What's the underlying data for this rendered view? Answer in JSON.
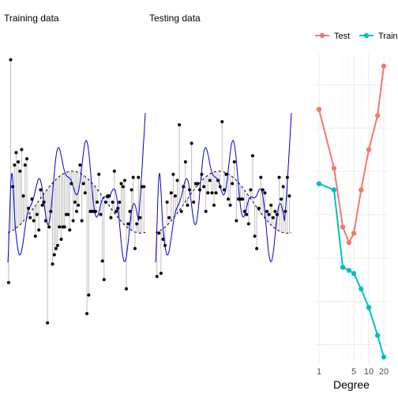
{
  "panels": {
    "training_title": "Training data",
    "testing_title": "Testing data"
  },
  "chart_data": [
    {
      "type": "scatter",
      "title": "Training data",
      "point_color": "#000000",
      "stem_color": "#bebebe",
      "truth_curve": "dashed black",
      "fit_color": "#0000cd",
      "points": [
        [
          0.005,
          0.24
        ],
        [
          0.02,
          0.96
        ],
        [
          0.035,
          0.55
        ],
        [
          0.048,
          0.62
        ],
        [
          0.06,
          0.66
        ],
        [
          0.075,
          0.63
        ],
        [
          0.088,
          0.6
        ],
        [
          0.1,
          0.67
        ],
        [
          0.112,
          0.52
        ],
        [
          0.125,
          0.62
        ],
        [
          0.138,
          0.64
        ],
        [
          0.15,
          0.48
        ],
        [
          0.162,
          0.45
        ],
        [
          0.175,
          0.51
        ],
        [
          0.188,
          0.44
        ],
        [
          0.2,
          0.39
        ],
        [
          0.212,
          0.46
        ],
        [
          0.225,
          0.41
        ],
        [
          0.238,
          0.54
        ],
        [
          0.25,
          0.49
        ],
        [
          0.262,
          0.5
        ],
        [
          0.275,
          0.44
        ],
        [
          0.288,
          0.11
        ],
        [
          0.3,
          0.42
        ],
        [
          0.312,
          0.47
        ],
        [
          0.325,
          0.3
        ],
        [
          0.338,
          0.33
        ],
        [
          0.35,
          0.35
        ],
        [
          0.362,
          0.36
        ],
        [
          0.375,
          0.42
        ],
        [
          0.388,
          0.38
        ],
        [
          0.4,
          0.42
        ],
        [
          0.412,
          0.42
        ],
        [
          0.425,
          0.46
        ],
        [
          0.438,
          0.46
        ],
        [
          0.45,
          0.41
        ],
        [
          0.462,
          0.56
        ],
        [
          0.475,
          0.44
        ],
        [
          0.488,
          0.5
        ],
        [
          0.5,
          0.47
        ],
        [
          0.512,
          0.49
        ],
        [
          0.525,
          0.62
        ],
        [
          0.538,
          0.44
        ],
        [
          0.55,
          0.56
        ],
        [
          0.562,
          0.53
        ],
        [
          0.575,
          0.14
        ],
        [
          0.588,
          0.2
        ],
        [
          0.6,
          0.47
        ],
        [
          0.612,
          0.47
        ],
        [
          0.625,
          0.47
        ],
        [
          0.638,
          0.47
        ],
        [
          0.65,
          0.5
        ],
        [
          0.662,
          0.59
        ],
        [
          0.675,
          0.46
        ],
        [
          0.688,
          0.31
        ],
        [
          0.7,
          0.25
        ],
        [
          0.712,
          0.5
        ],
        [
          0.725,
          0.52
        ],
        [
          0.738,
          0.52
        ],
        [
          0.75,
          0.45
        ],
        [
          0.762,
          0.5
        ],
        [
          0.775,
          0.6
        ],
        [
          0.788,
          0.47
        ],
        [
          0.8,
          0.48
        ],
        [
          0.812,
          0.5
        ],
        [
          0.825,
          0.56
        ],
        [
          0.838,
          0.55
        ],
        [
          0.85,
          0.57
        ],
        [
          0.862,
          0.22
        ],
        [
          0.875,
          0.43
        ],
        [
          0.888,
          0.47
        ],
        [
          0.9,
          0.54
        ],
        [
          0.912,
          0.58
        ],
        [
          0.925,
          0.35
        ],
        [
          0.938,
          0.43
        ],
        [
          0.95,
          0.58
        ],
        [
          0.962,
          0.45
        ],
        [
          0.975,
          0.55
        ],
        [
          0.99,
          0.55
        ]
      ]
    },
    {
      "type": "scatter",
      "title": "Testing data",
      "point_color": "#000000",
      "stem_color": "#bebebe",
      "truth_curve": "dashed black",
      "fit_color": "#0000cd",
      "points": [
        [
          0.01,
          0.26
        ],
        [
          0.025,
          0.4
        ],
        [
          0.04,
          0.27
        ],
        [
          0.055,
          0.38
        ],
        [
          0.07,
          0.36
        ],
        [
          0.085,
          0.5
        ],
        [
          0.1,
          0.45
        ],
        [
          0.115,
          0.53
        ],
        [
          0.13,
          0.59
        ],
        [
          0.145,
          0.52
        ],
        [
          0.16,
          0.57
        ],
        [
          0.175,
          0.75
        ],
        [
          0.19,
          0.47
        ],
        [
          0.205,
          0.55
        ],
        [
          0.22,
          0.63
        ],
        [
          0.235,
          0.49
        ],
        [
          0.25,
          0.54
        ],
        [
          0.265,
          0.69
        ],
        [
          0.28,
          0.5
        ],
        [
          0.295,
          0.56
        ],
        [
          0.31,
          0.56
        ],
        [
          0.325,
          0.54
        ],
        [
          0.34,
          0.59
        ],
        [
          0.355,
          0.55
        ],
        [
          0.37,
          0.47
        ],
        [
          0.385,
          0.53
        ],
        [
          0.4,
          0.57
        ],
        [
          0.415,
          0.53
        ],
        [
          0.43,
          0.49
        ],
        [
          0.445,
          0.53
        ],
        [
          0.46,
          0.57
        ],
        [
          0.475,
          0.55
        ],
        [
          0.49,
          0.76
        ],
        [
          0.505,
          0.54
        ],
        [
          0.52,
          0.59
        ],
        [
          0.535,
          0.51
        ],
        [
          0.55,
          0.49
        ],
        [
          0.565,
          0.56
        ],
        [
          0.58,
          0.63
        ],
        [
          0.595,
          0.44
        ],
        [
          0.61,
          0.51
        ],
        [
          0.625,
          0.51
        ],
        [
          0.64,
          0.51
        ],
        [
          0.655,
          0.47
        ],
        [
          0.67,
          0.46
        ],
        [
          0.685,
          0.43
        ],
        [
          0.7,
          0.54
        ],
        [
          0.715,
          0.65
        ],
        [
          0.73,
          0.39
        ],
        [
          0.745,
          0.35
        ],
        [
          0.76,
          0.48
        ],
        [
          0.775,
          0.58
        ],
        [
          0.79,
          0.54
        ],
        [
          0.805,
          0.53
        ],
        [
          0.82,
          0.47
        ],
        [
          0.835,
          0.46
        ],
        [
          0.85,
          0.49
        ],
        [
          0.865,
          0.45
        ],
        [
          0.88,
          0.47
        ],
        [
          0.895,
          0.46
        ],
        [
          0.91,
          0.58
        ],
        [
          0.925,
          0.51
        ],
        [
          0.94,
          0.55
        ],
        [
          0.955,
          0.47
        ],
        [
          0.97,
          0.58
        ],
        [
          0.985,
          0.52
        ]
      ]
    },
    {
      "type": "line",
      "xlabel": "Degree",
      "ylabel": "",
      "x_scale": "log",
      "x_ticks": [
        "1",
        "5",
        "10",
        "20"
      ],
      "legend_position": "top",
      "series": [
        {
          "name": "Test",
          "color": "#f8766d",
          "x": [
            1,
            2,
            3,
            4,
            5,
            7,
            10,
            15,
            20
          ],
          "y": [
            0.82,
            0.63,
            0.44,
            0.39,
            0.42,
            0.56,
            0.69,
            0.8,
            0.96
          ]
        },
        {
          "name": "Train",
          "color": "#00bfc4",
          "x": [
            1,
            2,
            3,
            4,
            5,
            7,
            10,
            15,
            20
          ],
          "y": [
            0.58,
            0.56,
            0.31,
            0.3,
            0.29,
            0.24,
            0.18,
            0.09,
            0.02
          ]
        }
      ]
    }
  ]
}
